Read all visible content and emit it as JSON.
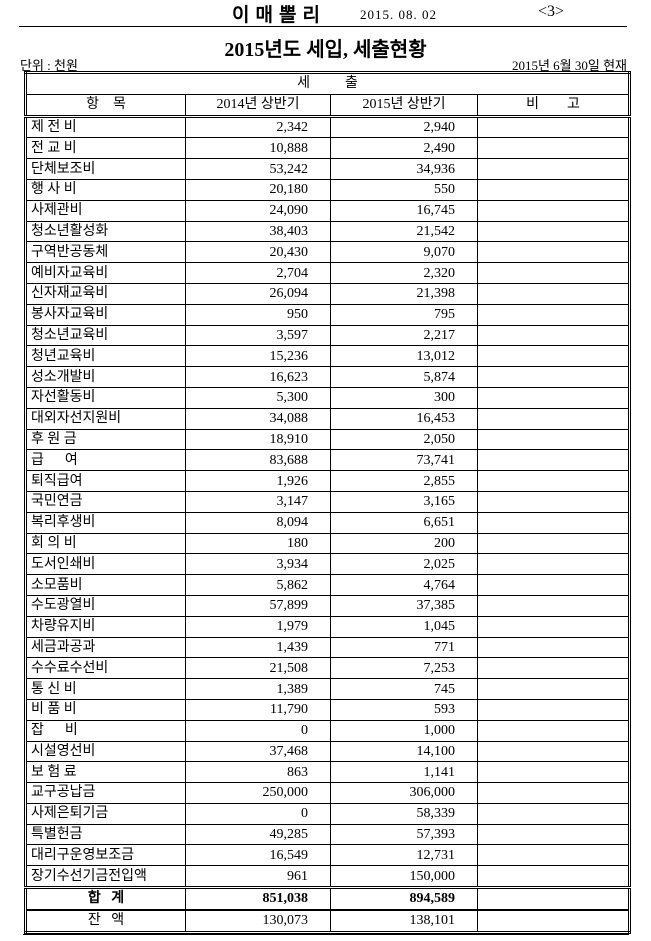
{
  "header": {
    "publication": "이매뽈리",
    "date": "2015. 08. 02",
    "page": "<3>"
  },
  "title": "2015년도 세입, 세출현황",
  "unit": "단위 : 천원",
  "as_of": "2015년 6월 30일 현재",
  "table": {
    "section": "세          출",
    "columns": [
      "항    목",
      "2014년 상반기",
      "2015년 상반기",
      "비        고"
    ],
    "rows": [
      [
        "제 전 비",
        "2,342",
        "2,940"
      ],
      [
        "전 교 비",
        "10,888",
        "2,490"
      ],
      [
        "단체보조비",
        "53,242",
        "34,936"
      ],
      [
        "행 사 비",
        "20,180",
        "550"
      ],
      [
        "사제관비",
        "24,090",
        "16,745"
      ],
      [
        "청소년활성화",
        "38,403",
        "21,542"
      ],
      [
        "구역반공동체",
        "20,430",
        "9,070"
      ],
      [
        "예비자교육비",
        "2,704",
        "2,320"
      ],
      [
        "신자재교육비",
        "26,094",
        "21,398"
      ],
      [
        "봉사자교육비",
        "950",
        "795"
      ],
      [
        "청소년교육비",
        "3,597",
        "2,217"
      ],
      [
        "청년교육비",
        "15,236",
        "13,012"
      ],
      [
        "성소개발비",
        "16,623",
        "5,874"
      ],
      [
        "자선활동비",
        "5,300",
        "300"
      ],
      [
        "대외자선지원비",
        "34,088",
        "16,453"
      ],
      [
        "후 원 금",
        "18,910",
        "2,050"
      ],
      [
        "급      여",
        "83,688",
        "73,741"
      ],
      [
        "퇴직급여",
        "1,926",
        "2,855"
      ],
      [
        "국민연금",
        "3,147",
        "3,165"
      ],
      [
        "복리후생비",
        "8,094",
        "6,651"
      ],
      [
        "회 의 비",
        "180",
        "200"
      ],
      [
        "도서인쇄비",
        "3,934",
        "2,025"
      ],
      [
        "소모품비",
        "5,862",
        "4,764"
      ],
      [
        "수도광열비",
        "57,899",
        "37,385"
      ],
      [
        "차량유지비",
        "1,979",
        "1,045"
      ],
      [
        "세금과공과",
        "1,439",
        "771"
      ],
      [
        "수수료수선비",
        "21,508",
        "7,253"
      ],
      [
        "통 신 비",
        "1,389",
        "745"
      ],
      [
        "비 품 비",
        "11,790",
        "593"
      ],
      [
        "잡      비",
        "0",
        "1,000"
      ],
      [
        "시설영선비",
        "37,468",
        "14,100"
      ],
      [
        "보 험 료",
        "863",
        "1,141"
      ],
      [
        "교구공납금",
        "250,000",
        "306,000"
      ],
      [
        "사제은퇴기금",
        "0",
        "58,339"
      ],
      [
        "특별헌금",
        "49,285",
        "57,393"
      ],
      [
        "대리구운영보조금",
        "16,549",
        "12,731"
      ],
      [
        "장기수선기금전입액",
        "961",
        "150,000"
      ]
    ],
    "total": [
      "합   계",
      "851,038",
      "894,589"
    ],
    "balance": [
      "잔   액",
      "130,073",
      "138,101"
    ]
  }
}
